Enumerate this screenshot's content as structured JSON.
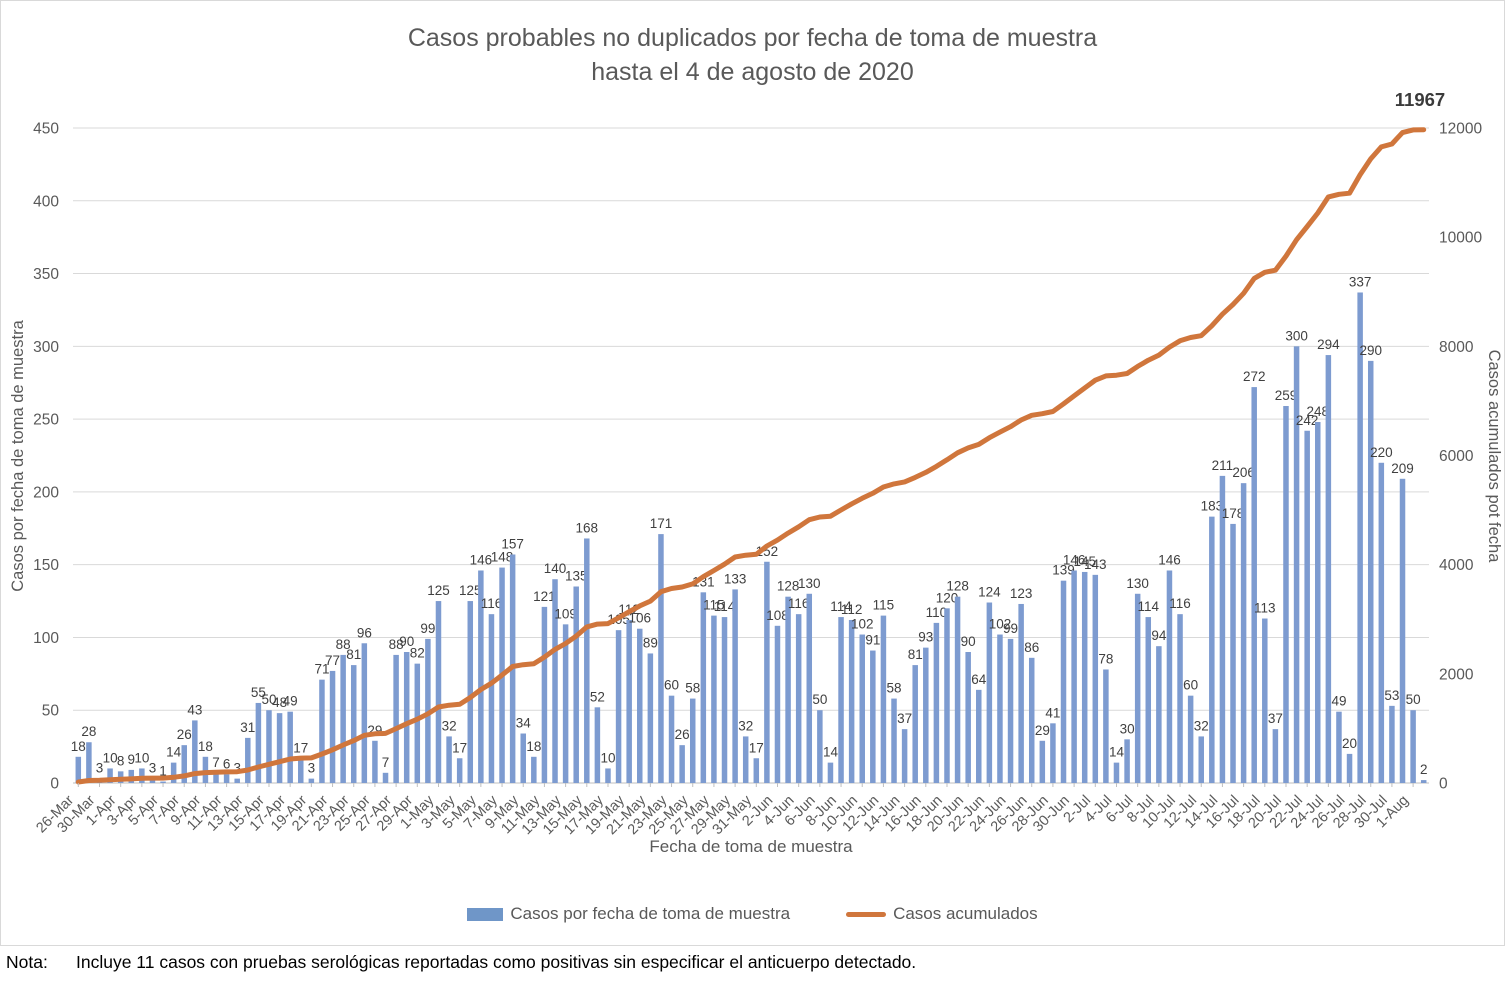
{
  "title": {
    "line1": "Casos probables no duplicados por fecha de toma de muestra",
    "line2": "hasta el 4 de agosto de 2020"
  },
  "note": {
    "label": "Nota:",
    "text": "Incluye 11 casos con pruebas serológicas reportadas como positivas sin especificar el anticuerpo detectado."
  },
  "colors": {
    "bar": "#7d9bd0",
    "line": "#d0763c",
    "axis_text": "#595959",
    "grid": "#d9d9d9",
    "axis_line": "#bfbfbf",
    "bar_label": "#404040",
    "total_label": "#3b3b3b"
  },
  "chart_data": {
    "type": "bar+line combo",
    "title": "Casos probables no duplicados por fecha de toma de muestra hasta el 4 de agosto de 2020",
    "xlabel": "Fecha de toma de muestra",
    "ylabel_left": "Casos por fecha de toma de muestra",
    "ylabel_right": "Casos acumulados pot fecha",
    "left_axis": {
      "min": 0,
      "max": 450,
      "step": 50
    },
    "right_axis": {
      "min": 0,
      "max": 12000,
      "step": 2000
    },
    "grid": "horizontal only",
    "legend_position": "bottom",
    "legend": [
      {
        "label": "Casos por fecha de toma de muestra",
        "type": "bar"
      },
      {
        "label": "Casos acumulados",
        "type": "line"
      }
    ],
    "x_tick_labels": [
      "26-Mar",
      "30-Mar",
      "1-Apr",
      "3-Apr",
      "5-Apr",
      "7-Apr",
      "9-Apr",
      "11-Apr",
      "13-Apr",
      "15-Apr",
      "17-Apr",
      "19-Apr",
      "21-Apr",
      "23-Apr",
      "25-Apr",
      "27-Apr",
      "29-Apr",
      "1-May",
      "3-May",
      "5-May",
      "7-May",
      "9-May",
      "11-May",
      "13-May",
      "15-May",
      "17-May",
      "19-May",
      "21-May",
      "23-May",
      "25-May",
      "27-May",
      "29-May",
      "31-May",
      "2-Jun",
      "4-Jun",
      "6-Jun",
      "8-Jun",
      "10-Jun",
      "12-Jun",
      "14-Jun",
      "16-Jun",
      "18-Jun",
      "20-Jun",
      "22-Jun",
      "24-Jun",
      "26-Jun",
      "28-Jun",
      "30-Jun",
      "2-Jul",
      "4-Jul",
      "6-Jul",
      "8-Jul",
      "10-Jul",
      "12-Jul",
      "14-Jul",
      "16-Jul",
      "18-Jul",
      "20-Jul",
      "22-Jul",
      "24-Jul",
      "26-Jul",
      "28-Jul",
      "30-Jul",
      "1-Aug"
    ],
    "x_tick_every_n_bars": 2,
    "values": [
      18,
      28,
      3,
      10,
      8,
      9,
      10,
      3,
      1,
      14,
      26,
      43,
      18,
      7,
      6,
      3,
      31,
      55,
      50,
      48,
      49,
      17,
      3,
      71,
      77,
      88,
      81,
      96,
      29,
      7,
      88,
      90,
      82,
      99,
      125,
      32,
      17,
      125,
      146,
      116,
      148,
      157,
      34,
      18,
      121,
      140,
      109,
      135,
      168,
      52,
      10,
      105,
      112,
      106,
      89,
      171,
      60,
      26,
      58,
      131,
      115,
      114,
      133,
      32,
      17,
      152,
      108,
      128,
      116,
      130,
      50,
      14,
      114,
      112,
      102,
      91,
      115,
      58,
      37,
      81,
      93,
      110,
      120,
      128,
      90,
      64,
      124,
      102,
      99,
      123,
      86,
      29,
      41,
      139,
      146,
      145,
      143,
      78,
      14,
      30,
      130,
      114,
      94,
      146,
      116,
      60,
      32,
      183,
      211,
      178,
      206,
      272,
      113,
      37,
      259,
      300,
      242,
      248,
      294,
      49,
      20,
      337,
      290,
      220,
      53,
      209,
      50,
      2
    ],
    "bar_labels_shown": true,
    "cumulative_line_is_running_sum_of_values": true,
    "cumulative_total_label": "11967"
  }
}
